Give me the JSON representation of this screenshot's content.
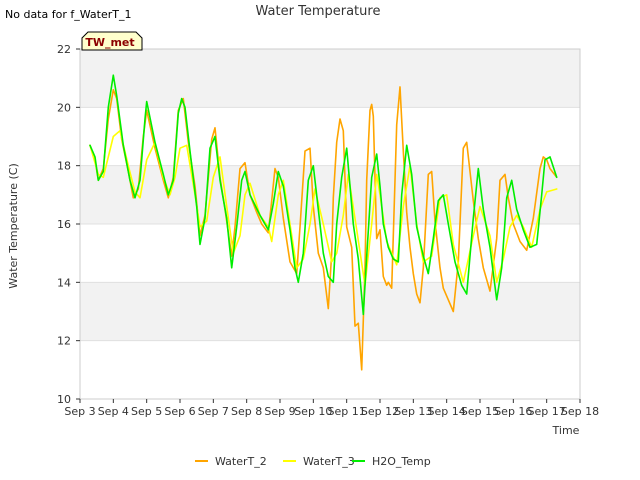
{
  "no_data_note": "No data for f_WaterT_1",
  "site_badge": "TW_met",
  "chart_data": {
    "type": "line",
    "title": "Water Temperature",
    "xlabel": "Time",
    "ylabel": "Water Temperature (C)",
    "xlim": [
      3,
      18
    ],
    "ylim": [
      10,
      22
    ],
    "x_ticks": [
      3,
      4,
      5,
      6,
      7,
      8,
      9,
      10,
      11,
      12,
      13,
      14,
      15,
      16,
      17,
      18
    ],
    "x_tick_labels": [
      "Sep 3",
      "Sep 4",
      "Sep 5",
      "Sep 6",
      "Sep 7",
      "Sep 8",
      "Sep 9",
      "Sep 10",
      "Sep 11",
      "Sep 12",
      "Sep 13",
      "Sep 14",
      "Sep 15",
      "Sep 16",
      "Sep 17",
      "Sep 18"
    ],
    "y_ticks": [
      10,
      12,
      14,
      16,
      18,
      20,
      22
    ],
    "y_tick_labels": [
      "10",
      "12",
      "14",
      "16",
      "18",
      "20",
      "22"
    ],
    "grid": "horizontal bands",
    "legend_position": "bottom-center",
    "series": [
      {
        "name": "WaterT_2",
        "color": "#FFA500",
        "x": [
          3.3,
          3.45,
          3.55,
          3.7,
          3.85,
          4.0,
          4.1,
          4.25,
          4.45,
          4.6,
          4.75,
          4.9,
          5.0,
          5.25,
          5.5,
          5.65,
          5.8,
          5.95,
          6.1,
          6.25,
          6.45,
          6.6,
          6.75,
          6.95,
          7.05,
          7.2,
          7.35,
          7.55,
          7.65,
          7.8,
          7.95,
          8.1,
          8.3,
          8.45,
          8.65,
          8.75,
          8.85,
          8.95,
          9.1,
          9.3,
          9.5,
          9.6,
          9.75,
          9.9,
          10.0,
          10.15,
          10.3,
          10.45,
          10.55,
          10.6,
          10.7,
          10.8,
          10.9,
          11.0,
          11.15,
          11.25,
          11.35,
          11.45,
          11.55,
          11.6,
          11.7,
          11.75,
          11.8,
          11.9,
          12.0,
          12.1,
          12.2,
          12.25,
          12.35,
          12.45,
          12.5,
          12.6,
          12.7,
          12.8,
          12.9,
          13.0,
          13.1,
          13.2,
          13.3,
          13.45,
          13.55,
          13.65,
          13.8,
          13.9,
          14.05,
          14.2,
          14.35,
          14.5,
          14.6,
          14.8,
          14.95,
          15.1,
          15.3,
          15.5,
          15.6,
          15.75,
          15.85,
          16.0,
          16.2,
          16.4,
          16.6,
          16.8,
          16.9,
          17.0,
          17.1,
          17.3
        ],
        "y": [
          18.7,
          18.2,
          17.5,
          17.9,
          19.6,
          20.6,
          20.3,
          18.9,
          17.8,
          16.9,
          17.2,
          19.0,
          19.9,
          18.6,
          17.5,
          16.9,
          17.6,
          19.9,
          20.3,
          18.8,
          17.3,
          15.6,
          16.3,
          18.9,
          19.3,
          17.6,
          16.5,
          14.9,
          15.9,
          17.9,
          18.1,
          17.0,
          16.4,
          16.0,
          15.7,
          16.8,
          17.9,
          17.6,
          16.2,
          14.7,
          14.3,
          15.9,
          18.5,
          18.6,
          16.6,
          15.0,
          14.5,
          13.1,
          15.0,
          16.9,
          18.8,
          19.6,
          19.2,
          15.9,
          15.2,
          12.5,
          12.6,
          11.0,
          14.5,
          17.5,
          19.9,
          20.1,
          19.7,
          15.5,
          15.8,
          14.2,
          13.9,
          14.0,
          13.8,
          17.5,
          19.4,
          20.7,
          18.5,
          16.4,
          15.2,
          14.3,
          13.6,
          13.3,
          14.5,
          17.7,
          17.8,
          16.1,
          14.5,
          13.8,
          13.4,
          13.0,
          14.7,
          18.6,
          18.8,
          16.8,
          15.5,
          14.5,
          13.7,
          15.5,
          17.5,
          17.7,
          16.9,
          16.0,
          15.4,
          15.1,
          16.2,
          17.9,
          18.3,
          18.2,
          17.9,
          17.6
        ]
      },
      {
        "name": "WaterT_3",
        "color": "#FFFF00",
        "x": [
          3.3,
          3.55,
          3.7,
          3.85,
          4.0,
          4.2,
          4.45,
          4.65,
          4.8,
          5.0,
          5.25,
          5.5,
          5.7,
          5.85,
          6.0,
          6.2,
          6.45,
          6.6,
          6.8,
          7.0,
          7.2,
          7.4,
          7.6,
          7.8,
          7.95,
          8.1,
          8.4,
          8.65,
          8.75,
          8.95,
          9.1,
          9.3,
          9.5,
          9.7,
          9.9,
          10.05,
          10.3,
          10.55,
          10.7,
          10.9,
          11.05,
          11.3,
          11.55,
          11.75,
          11.9,
          12.0,
          12.2,
          12.5,
          12.7,
          12.9,
          13.1,
          13.3,
          13.55,
          13.8,
          14.0,
          14.2,
          14.5,
          14.8,
          15.0,
          15.3,
          15.5,
          15.7,
          15.9,
          16.1,
          16.3,
          16.55,
          16.8,
          17.0,
          17.3
        ],
        "y": [
          18.7,
          17.7,
          17.6,
          18.3,
          19.0,
          19.2,
          18.0,
          17.1,
          16.9,
          18.2,
          18.8,
          17.6,
          17.0,
          17.6,
          18.6,
          18.7,
          17.0,
          15.9,
          16.1,
          17.6,
          18.3,
          16.6,
          15.0,
          15.6,
          17.0,
          17.4,
          16.3,
          15.9,
          15.4,
          17.0,
          17.5,
          16.0,
          14.5,
          14.8,
          16.0,
          17.2,
          16.0,
          14.7,
          15.0,
          16.3,
          17.7,
          15.8,
          13.9,
          16.0,
          17.7,
          17.0,
          15.4,
          14.6,
          16.6,
          18.0,
          16.0,
          14.7,
          14.9,
          16.9,
          17.0,
          15.3,
          14.0,
          15.6,
          16.6,
          15.6,
          14.0,
          14.8,
          15.9,
          16.3,
          15.9,
          15.2,
          16.5,
          17.1,
          17.2
        ]
      },
      {
        "name": "H2O_Temp",
        "color": "#00EE00",
        "x": [
          3.3,
          3.45,
          3.55,
          3.7,
          3.85,
          4.0,
          4.1,
          4.3,
          4.5,
          4.65,
          4.8,
          4.95,
          5.0,
          5.25,
          5.5,
          5.65,
          5.8,
          5.95,
          6.05,
          6.15,
          6.3,
          6.5,
          6.6,
          6.75,
          6.9,
          7.05,
          7.2,
          7.4,
          7.55,
          7.7,
          7.85,
          7.95,
          8.1,
          8.4,
          8.65,
          8.8,
          8.95,
          9.1,
          9.3,
          9.45,
          9.55,
          9.7,
          9.85,
          10.0,
          10.15,
          10.3,
          10.45,
          10.6,
          10.7,
          10.85,
          11.0,
          11.2,
          11.35,
          11.5,
          11.6,
          11.75,
          11.9,
          12.0,
          12.1,
          12.25,
          12.4,
          12.55,
          12.65,
          12.8,
          12.95,
          13.1,
          13.3,
          13.45,
          13.6,
          13.75,
          13.9,
          14.05,
          14.25,
          14.45,
          14.6,
          14.8,
          14.95,
          15.1,
          15.3,
          15.5,
          15.65,
          15.8,
          15.95,
          16.1,
          16.3,
          16.5,
          16.7,
          16.85,
          16.95,
          17.1,
          17.3
        ],
        "y": [
          18.7,
          18.3,
          17.5,
          17.8,
          20.0,
          21.1,
          20.4,
          18.7,
          17.5,
          16.9,
          17.5,
          19.6,
          20.2,
          18.8,
          17.7,
          17.0,
          17.5,
          19.8,
          20.3,
          20.0,
          18.5,
          16.6,
          15.3,
          16.2,
          18.6,
          19.0,
          17.5,
          16.2,
          14.5,
          15.9,
          17.5,
          17.8,
          17.0,
          16.3,
          15.8,
          16.7,
          17.8,
          17.3,
          15.8,
          14.5,
          14.0,
          15.0,
          17.5,
          18.0,
          16.5,
          15.0,
          14.2,
          14.0,
          16.0,
          17.6,
          18.6,
          16.0,
          14.8,
          12.9,
          14.9,
          17.6,
          18.4,
          17.3,
          16.0,
          15.2,
          14.8,
          14.7,
          17.0,
          18.7,
          17.7,
          15.9,
          14.9,
          14.3,
          15.5,
          16.8,
          17.0,
          16.0,
          14.7,
          13.9,
          13.6,
          16.2,
          17.9,
          16.5,
          15.2,
          13.4,
          14.5,
          16.9,
          17.5,
          16.5,
          15.8,
          15.2,
          15.3,
          17.0,
          18.2,
          18.3,
          17.6
        ]
      }
    ]
  }
}
